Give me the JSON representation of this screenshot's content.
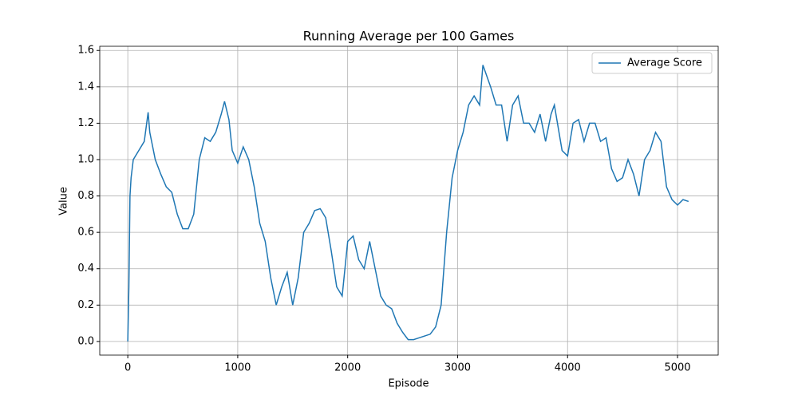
{
  "chart_data": {
    "type": "line",
    "title": "Running Average per 100 Games",
    "xlabel": "Episode",
    "ylabel": "Value",
    "x": [
      0,
      10,
      20,
      30,
      50,
      100,
      150,
      185,
      200,
      250,
      300,
      350,
      400,
      450,
      500,
      550,
      600,
      650,
      700,
      750,
      800,
      850,
      880,
      920,
      950,
      1000,
      1050,
      1100,
      1150,
      1200,
      1250,
      1300,
      1350,
      1400,
      1450,
      1500,
      1550,
      1600,
      1650,
      1700,
      1750,
      1800,
      1850,
      1900,
      1950,
      2000,
      2050,
      2100,
      2150,
      2200,
      2250,
      2300,
      2350,
      2400,
      2450,
      2500,
      2550,
      2600,
      2650,
      2700,
      2750,
      2800,
      2850,
      2900,
      2950,
      3000,
      3050,
      3100,
      3150,
      3200,
      3230,
      3300,
      3350,
      3400,
      3450,
      3500,
      3550,
      3600,
      3650,
      3700,
      3750,
      3800,
      3850,
      3880,
      3950,
      4000,
      4050,
      4100,
      4150,
      4200,
      4250,
      4300,
      4350,
      4400,
      4450,
      4500,
      4550,
      4600,
      4650,
      4700,
      4750,
      4800,
      4850,
      4900,
      4950,
      5000,
      5050,
      5100
    ],
    "series": [
      {
        "name": "Average Score",
        "color": "#1f77b4",
        "values": [
          0.0,
          0.3,
          0.8,
          0.9,
          1.0,
          1.05,
          1.1,
          1.26,
          1.15,
          1.0,
          0.92,
          0.85,
          0.82,
          0.7,
          0.62,
          0.62,
          0.7,
          1.0,
          1.12,
          1.1,
          1.15,
          1.25,
          1.32,
          1.22,
          1.05,
          0.98,
          1.07,
          1.0,
          0.85,
          0.65,
          0.55,
          0.35,
          0.2,
          0.3,
          0.38,
          0.2,
          0.35,
          0.6,
          0.65,
          0.72,
          0.73,
          0.68,
          0.5,
          0.3,
          0.25,
          0.55,
          0.58,
          0.45,
          0.4,
          0.55,
          0.4,
          0.25,
          0.2,
          0.18,
          0.1,
          0.05,
          0.01,
          0.01,
          0.02,
          0.03,
          0.04,
          0.08,
          0.2,
          0.6,
          0.9,
          1.05,
          1.15,
          1.3,
          1.35,
          1.3,
          1.52,
          1.4,
          1.3,
          1.3,
          1.1,
          1.3,
          1.35,
          1.2,
          1.2,
          1.15,
          1.25,
          1.1,
          1.25,
          1.3,
          1.05,
          1.02,
          1.2,
          1.22,
          1.1,
          1.2,
          1.2,
          1.1,
          1.12,
          0.95,
          0.88,
          0.9,
          1.0,
          0.92,
          0.8,
          1.0,
          1.05,
          1.15,
          1.1,
          0.85,
          0.78,
          0.75,
          0.78,
          0.77
        ]
      }
    ],
    "xlim": [
      -255,
      5370
    ],
    "ylim": [
      -0.075,
      1.623
    ],
    "xticks": [
      0,
      1000,
      2000,
      3000,
      4000,
      5000
    ],
    "yticks": [
      {
        "value": 0,
        "label": "0.0"
      },
      0.2,
      0.4,
      0.6,
      0.8,
      {
        "value": 1,
        "label": "1.0"
      },
      1.2,
      1.4,
      1.6
    ],
    "grid": true,
    "legend": "upper right"
  }
}
